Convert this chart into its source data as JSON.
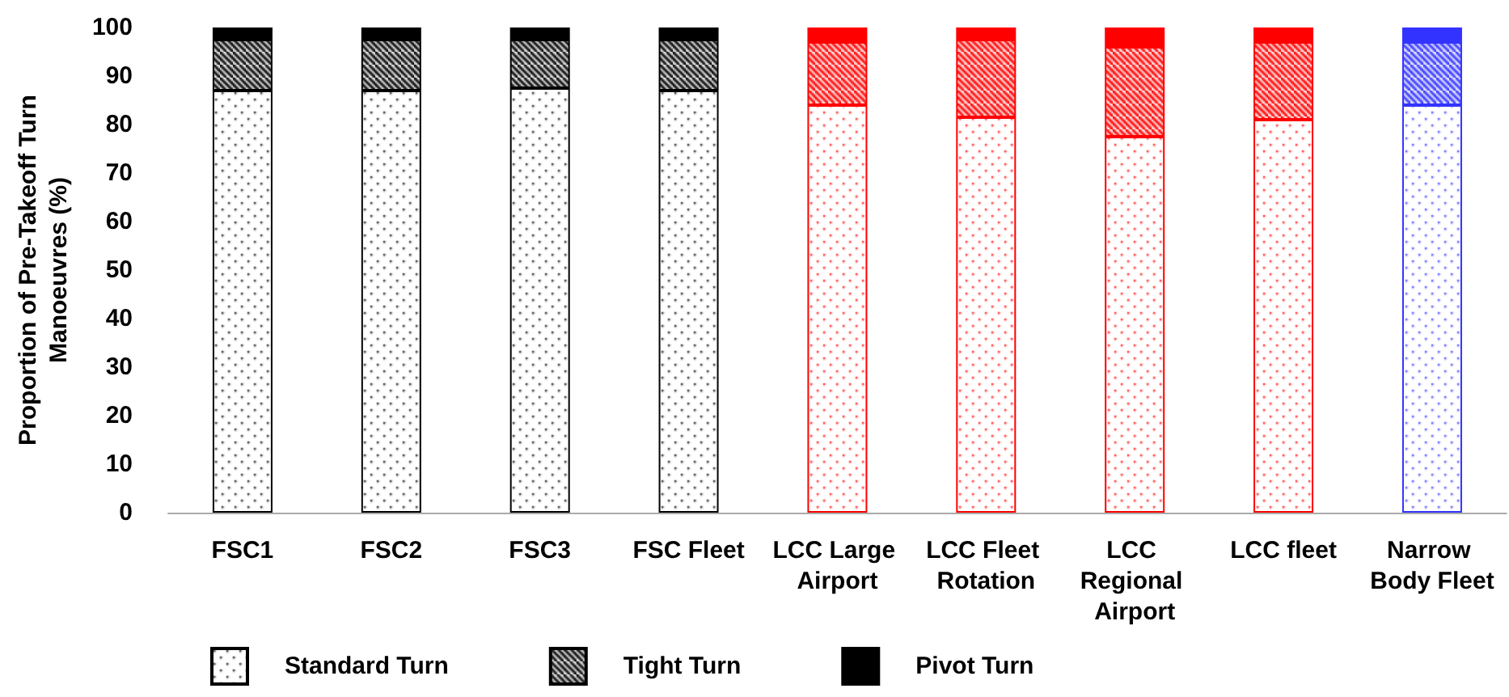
{
  "chart_data": {
    "type": "bar",
    "stacked": true,
    "ylabel": "Proportion of Pre-Takeoff Turn Manoeuvres (%)",
    "categories": [
      "FSC1",
      "FSC2",
      "FSC3",
      "FSC Fleet",
      "LCC Large Airport",
      "LCC Fleet Rotation",
      "LCC Regional Airport",
      "LCC fleet",
      "Narrow Body Fleet"
    ],
    "series": [
      {
        "name": "Standard Turn",
        "color": "#000000",
        "colors": [
          "#000000",
          "#000000",
          "#000000",
          "#000000",
          "#ff0000",
          "#ff0000",
          "#ff0000",
          "#ff0000",
          "#3333ff"
        ],
        "values": [
          87,
          87,
          87.5,
          87,
          84,
          81.5,
          77.5,
          81,
          84
        ]
      },
      {
        "name": "Tight Turn",
        "color": "#000000",
        "colors": [
          "#000000",
          "#000000",
          "#000000",
          "#000000",
          "#ff0000",
          "#ff0000",
          "#ff0000",
          "#ff0000",
          "#3333ff"
        ],
        "values": [
          10.5,
          10.5,
          10,
          10.5,
          13,
          16,
          18.5,
          16,
          13
        ]
      },
      {
        "name": "Pivot Turn",
        "color": "#000000",
        "colors": [
          "#000000",
          "#000000",
          "#000000",
          "#000000",
          "#ff0000",
          "#ff0000",
          "#ff0000",
          "#ff0000",
          "#3333ff"
        ],
        "values": [
          2.5,
          2.5,
          2.5,
          2.5,
          3,
          2.5,
          4,
          3,
          3
        ]
      }
    ],
    "ylim": [
      0,
      100
    ],
    "yticks": [
      0,
      10,
      20,
      30,
      40,
      50,
      60,
      70,
      80,
      90,
      100
    ],
    "grid": false,
    "legend": "bottom"
  }
}
